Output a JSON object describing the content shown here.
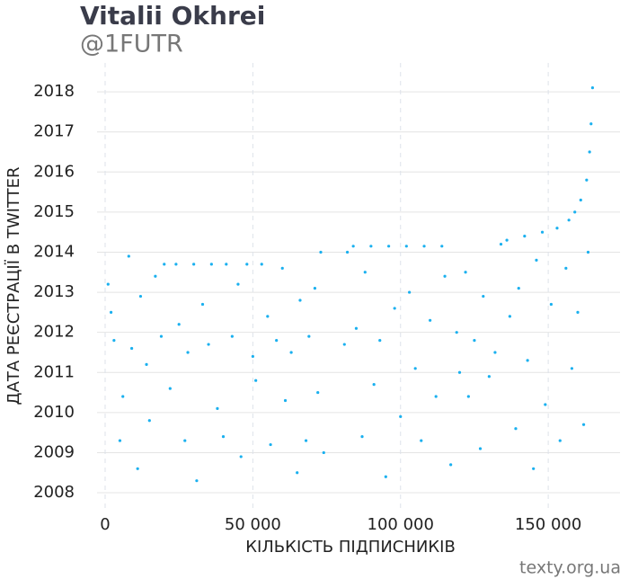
{
  "chart_data": {
    "type": "scatter",
    "title": "Vitalii Okhrei",
    "subtitle": "@1FUTR",
    "x_label": "КІЛЬКІСТЬ ПІДПИСНИКІВ",
    "y_label": "ДАТА РЕЄСТРАЦІЇ В TWITTER",
    "source": "texty.org.ua",
    "color": "#1ab0ef",
    "grid": true,
    "xlim": [
      -2740,
      174300
    ],
    "ylim": [
      2007.62,
      2018.72
    ],
    "xticks": [
      0,
      {
        "value": 50000,
        "label": "50 000"
      },
      {
        "value": 100000,
        "label": "100 000"
      },
      {
        "value": 150000,
        "label": "150 000"
      }
    ],
    "yticks": [
      2008,
      2009,
      2010,
      2011,
      2012,
      2013,
      2014,
      2015,
      2016,
      2017,
      2018
    ],
    "x": [
      1000,
      2000,
      3000,
      5000,
      6000,
      8000,
      9000,
      11000,
      12000,
      14000,
      15000,
      17000,
      19000,
      20000,
      22000,
      24000,
      25000,
      27000,
      28000,
      30000,
      31000,
      33000,
      35000,
      36000,
      38000,
      40000,
      41000,
      43000,
      45000,
      46000,
      48000,
      50000,
      51000,
      53000,
      55000,
      56000,
      58000,
      60000,
      61000,
      63000,
      65000,
      66000,
      68000,
      69000,
      71000,
      72000,
      73000,
      74000,
      81000,
      82000,
      84000,
      85000,
      87000,
      88000,
      90000,
      91000,
      93000,
      95000,
      96000,
      98000,
      100000,
      102000,
      103000,
      105000,
      107000,
      108000,
      110000,
      112000,
      114000,
      115000,
      117000,
      119000,
      120000,
      122000,
      123000,
      125000,
      127000,
      128000,
      130000,
      132000,
      134000,
      136000,
      137000,
      139000,
      140000,
      142000,
      143000,
      145000,
      146000,
      148000,
      149000,
      151000,
      153000,
      154000,
      156000,
      157000,
      158000,
      159000,
      160000,
      161000,
      162000,
      163000,
      163500,
      164000,
      164500,
      165000
    ],
    "y": [
      2013.2,
      2012.5,
      2011.8,
      2009.3,
      2010.4,
      2013.9,
      2011.6,
      2008.6,
      2012.9,
      2011.2,
      2009.8,
      2013.4,
      2011.9,
      2013.7,
      2010.6,
      2013.7,
      2012.2,
      2009.3,
      2011.5,
      2013.7,
      2008.3,
      2012.7,
      2011.7,
      2013.7,
      2010.1,
      2009.4,
      2013.7,
      2011.9,
      2013.2,
      2008.9,
      2013.7,
      2011.4,
      2010.8,
      2013.7,
      2012.4,
      2009.2,
      2011.8,
      2013.6,
      2010.3,
      2011.5,
      2008.5,
      2012.8,
      2009.3,
      2011.9,
      2013.1,
      2010.5,
      2014.0,
      2009.0,
      2011.7,
      2014.0,
      2014.15,
      2012.1,
      2009.4,
      2013.5,
      2014.15,
      2010.7,
      2011.8,
      2008.4,
      2014.15,
      2012.6,
      2009.9,
      2014.15,
      2013.0,
      2011.1,
      2009.3,
      2014.15,
      2012.3,
      2010.4,
      2014.15,
      2013.4,
      2008.7,
      2012.0,
      2011.0,
      2013.5,
      2010.4,
      2011.8,
      2009.1,
      2012.9,
      2010.9,
      2011.5,
      2014.2,
      2014.3,
      2012.4,
      2009.6,
      2013.1,
      2014.4,
      2011.3,
      2008.6,
      2013.8,
      2014.5,
      2010.2,
      2012.7,
      2014.6,
      2009.3,
      2013.6,
      2014.8,
      2011.1,
      2015.0,
      2012.5,
      2015.3,
      2009.7,
      2015.8,
      2014.0,
      2016.5,
      2017.2,
      2018.1
    ]
  }
}
